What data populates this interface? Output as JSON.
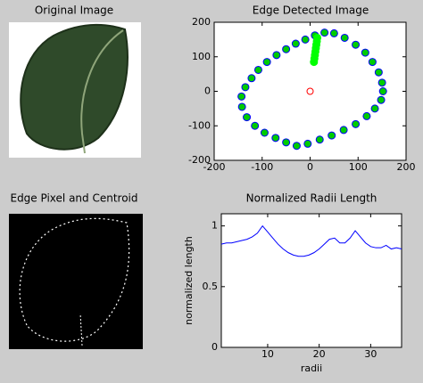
{
  "chart_data": [
    {
      "type": "image",
      "title": "Original Image"
    },
    {
      "type": "scatter",
      "title": "Edge Detected Image",
      "xlim": [
        -200,
        200
      ],
      "ylim": [
        -200,
        200
      ],
      "xticks": [
        -200,
        -100,
        0,
        100,
        200
      ],
      "yticks": [
        -200,
        -100,
        0,
        100,
        200
      ],
      "series": [
        {
          "color": "#0000ff",
          "fill": "#00cc00",
          "x": [
            30,
            10,
            -10,
            -30,
            -50,
            -70,
            -90,
            -108,
            -122,
            -135,
            -143,
            -142,
            -132,
            -115,
            -95,
            -72,
            -50,
            -28,
            -5,
            20,
            45,
            70,
            95,
            118,
            135,
            148,
            152,
            150,
            143,
            130,
            115,
            95,
            72,
            50
          ],
          "y": [
            170,
            162,
            150,
            138,
            122,
            105,
            85,
            62,
            38,
            12,
            -15,
            -45,
            -75,
            -100,
            -120,
            -135,
            -148,
            -158,
            -152,
            -140,
            -128,
            -112,
            -95,
            -72,
            -50,
            -25,
            0,
            25,
            55,
            85,
            112,
            135,
            155,
            168
          ]
        },
        {
          "color": "#00ff00",
          "fill": "#00ff00",
          "x": [
            8,
            9,
            10,
            11,
            12,
            13,
            14,
            15
          ],
          "y": [
            85,
            95,
            105,
            115,
            125,
            135,
            145,
            155
          ]
        },
        {
          "color": "#ff0000",
          "fill": "none",
          "x": [
            0
          ],
          "y": [
            0
          ]
        }
      ]
    },
    {
      "type": "image",
      "title": "Edge Pixel and Centroid"
    },
    {
      "type": "line",
      "title": "Normalized Radii Length",
      "xlabel": "radii",
      "ylabel": "normalized length",
      "xlim": [
        1,
        36
      ],
      "ylim": [
        0,
        1.1
      ],
      "xticks": [
        10,
        20,
        30
      ],
      "yticks": [
        0,
        0.5,
        1
      ],
      "x": [
        1,
        2,
        3,
        4,
        5,
        6,
        7,
        8,
        9,
        10,
        11,
        12,
        13,
        14,
        15,
        16,
        17,
        18,
        19,
        20,
        21,
        22,
        23,
        24,
        25,
        26,
        27,
        28,
        29,
        30,
        31,
        32,
        33,
        34,
        35,
        36
      ],
      "series": [
        {
          "color": "#0000ff",
          "values": [
            0.85,
            0.86,
            0.86,
            0.87,
            0.88,
            0.89,
            0.91,
            0.94,
            1.0,
            0.95,
            0.9,
            0.85,
            0.81,
            0.78,
            0.76,
            0.75,
            0.75,
            0.76,
            0.78,
            0.81,
            0.85,
            0.89,
            0.9,
            0.86,
            0.86,
            0.9,
            0.96,
            0.91,
            0.86,
            0.83,
            0.82,
            0.82,
            0.84,
            0.81,
            0.82,
            0.81
          ]
        }
      ]
    }
  ]
}
